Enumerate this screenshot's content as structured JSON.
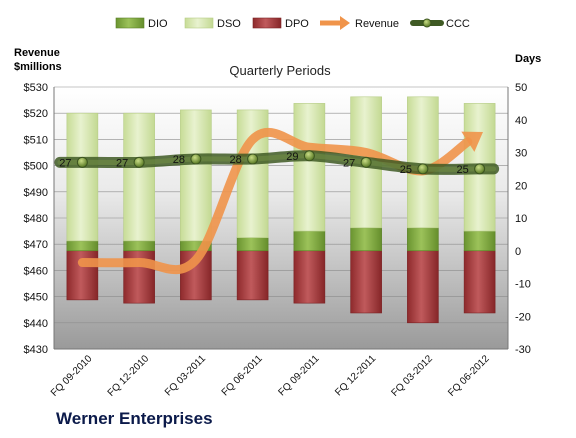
{
  "chart_data": {
    "type": "bar",
    "title": "Quarterly Periods",
    "company": "Werner Enterprises",
    "left_axis_label_line1": "Revenue",
    "left_axis_label_line2": "$millions",
    "right_axis_label": "Days",
    "categories": [
      "FQ 09-2010",
      "FQ 12-2010",
      "FQ 03-2011",
      "FQ 06-2011",
      "FQ 09-2011",
      "FQ 12-2011",
      "FQ 03-2012",
      "FQ 06-2012"
    ],
    "left_ylim": [
      430,
      530
    ],
    "left_ticks": [
      430,
      440,
      450,
      460,
      470,
      480,
      490,
      500,
      510,
      520,
      530
    ],
    "left_tick_labels": [
      "$430",
      "$440",
      "$450",
      "$460",
      "$470",
      "$480",
      "$490",
      "$500",
      "$510",
      "$520",
      "$530"
    ],
    "right_ylim": [
      -30,
      50
    ],
    "right_ticks": [
      -30,
      -20,
      -10,
      0,
      10,
      20,
      30,
      40,
      50
    ],
    "legend_position": "top",
    "series": [
      {
        "name": "DIO",
        "axis": "right",
        "kind": "stacked_bar",
        "color": "#7aa33a",
        "values": [
          3,
          3,
          3,
          4,
          6,
          7,
          7,
          6
        ]
      },
      {
        "name": "DSO",
        "axis": "right",
        "kind": "stacked_bar",
        "color": "#d8e8b4",
        "values": [
          39,
          39,
          40,
          39,
          39,
          40,
          40,
          39
        ]
      },
      {
        "name": "DPO",
        "axis": "right",
        "kind": "bar_negative",
        "color": "#a33a3c",
        "values": [
          -15,
          -16,
          -15,
          -15,
          -16,
          -19,
          -22,
          -19
        ]
      },
      {
        "name": "Revenue",
        "axis": "left",
        "kind": "line",
        "color": "#f0944a",
        "values": [
          463,
          463,
          464,
          510,
          507,
          505,
          498,
          512
        ]
      },
      {
        "name": "CCC",
        "axis": "right",
        "kind": "line",
        "color": "#4c6a2c",
        "values": [
          27,
          27,
          28,
          28,
          29,
          27,
          25,
          25
        ],
        "data_labels": [
          "27",
          "27",
          "28",
          "28",
          "29",
          "27",
          "25",
          "25"
        ]
      }
    ]
  }
}
